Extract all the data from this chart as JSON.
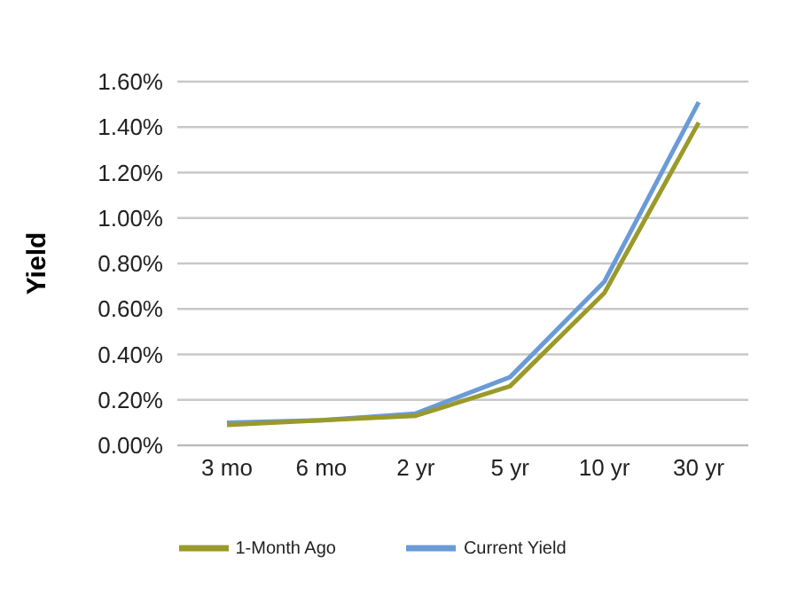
{
  "chart_data": {
    "type": "line",
    "ylabel": "Yield",
    "categories": [
      "3 mo",
      "6 mo",
      "2 yr",
      "5 yr",
      "10 yr",
      "30 yr"
    ],
    "series": [
      {
        "name": "Current Yield",
        "color": "#6a9bd8",
        "values": [
          0.1,
          0.11,
          0.14,
          0.3,
          0.72,
          1.51
        ]
      },
      {
        "name": "1-Month Ago",
        "color": "#9a9a2a",
        "values": [
          0.09,
          0.11,
          0.13,
          0.26,
          0.67,
          1.42
        ]
      }
    ],
    "ylim": [
      0,
      1.6
    ],
    "yticks": [
      {
        "value": 0,
        "label": "0.00%"
      },
      {
        "value": 0.2,
        "label": "0.20%"
      },
      {
        "value": 0.4,
        "label": "0.40%"
      },
      {
        "value": 0.6,
        "label": "0.60%"
      },
      {
        "value": 0.8,
        "label": "0.80%"
      },
      {
        "value": 1,
        "label": "1.00%"
      },
      {
        "value": 1.2,
        "label": "1.20%"
      },
      {
        "value": 1.4,
        "label": "1.40%"
      },
      {
        "value": 1.6,
        "label": "1.60%"
      }
    ],
    "grid": "y",
    "legend": "bottom",
    "marker": "none",
    "line_style": "solid"
  }
}
